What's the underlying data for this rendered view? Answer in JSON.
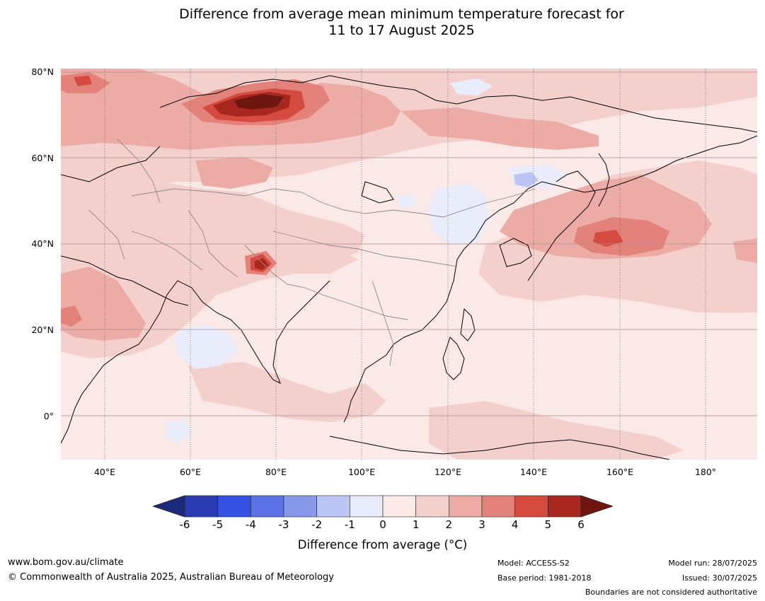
{
  "title_line1": "Difference from average mean minimum temperature forecast for",
  "title_line2": "11 to 17 August 2025",
  "map": {
    "lat_labels": [
      "80°N",
      "60°N",
      "40°N",
      "20°N",
      "0°"
    ],
    "lon_labels": [
      "40°E",
      "60°E",
      "80°E",
      "100°E",
      "120°E",
      "140°E",
      "160°E",
      "180°"
    ],
    "lat_values": [
      80,
      60,
      40,
      20,
      0
    ],
    "lon_values": [
      40,
      60,
      80,
      100,
      120,
      140,
      160,
      180
    ]
  },
  "colorbar": {
    "ticks": [
      "-6",
      "-5",
      "-4",
      "-3",
      "-2",
      "-1",
      "0",
      "1",
      "2",
      "3",
      "4",
      "5",
      "6"
    ],
    "colors": [
      "#1b2a7a",
      "#2a3cb0",
      "#3350e0",
      "#5b73e6",
      "#8899ea",
      "#bcc6f4",
      "#e8ecfb",
      "#fbe9e7",
      "#f4d0cc",
      "#ecaca5",
      "#e3827a",
      "#d64b40",
      "#a8281f",
      "#6e1710"
    ],
    "label": "Difference from average (°C)"
  },
  "footer": {
    "url": "www.bom.gov.au/climate",
    "copyright": "© Commonwealth of Australia 2025, Australian Bureau of Meteorology",
    "model": "Model: ACCESS-S2",
    "base_period": "Base period: 1981-2018",
    "model_run": "Model run: 28/07/2025",
    "issued": "Issued: 30/07/2025",
    "boundaries": "Boundaries are not considered authoritative"
  }
}
